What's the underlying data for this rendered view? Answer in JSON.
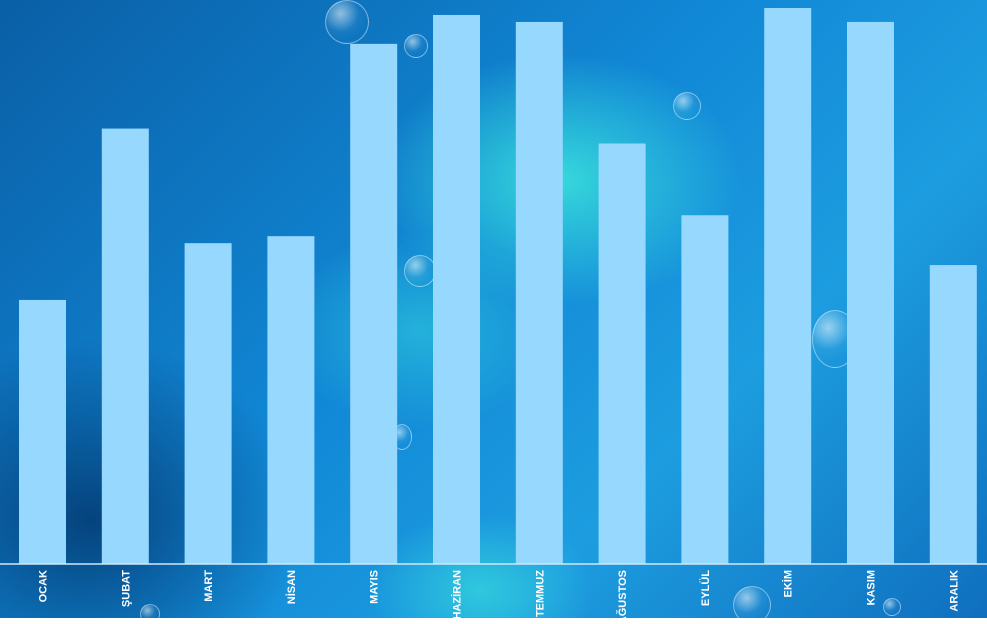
{
  "chart_data": {
    "type": "bar",
    "categories": [
      "OCAK",
      "ŞUBAT",
      "MART",
      "NİSAN",
      "MAYIS",
      "HAZİRAN",
      "TEMMUZ",
      "AĞUSTOS",
      "EYLÜL",
      "EKİM",
      "KASIM",
      "ARALIK"
    ],
    "values": [
      265,
      437,
      322,
      329,
      522,
      551,
      544,
      422,
      350,
      558,
      544,
      300
    ],
    "ylim": [
      0,
      560
    ],
    "bar_color": "#97d8ff",
    "axis_color": "#cfe8f8",
    "label_color": "#ffffff",
    "grid": false,
    "legend": "none"
  }
}
